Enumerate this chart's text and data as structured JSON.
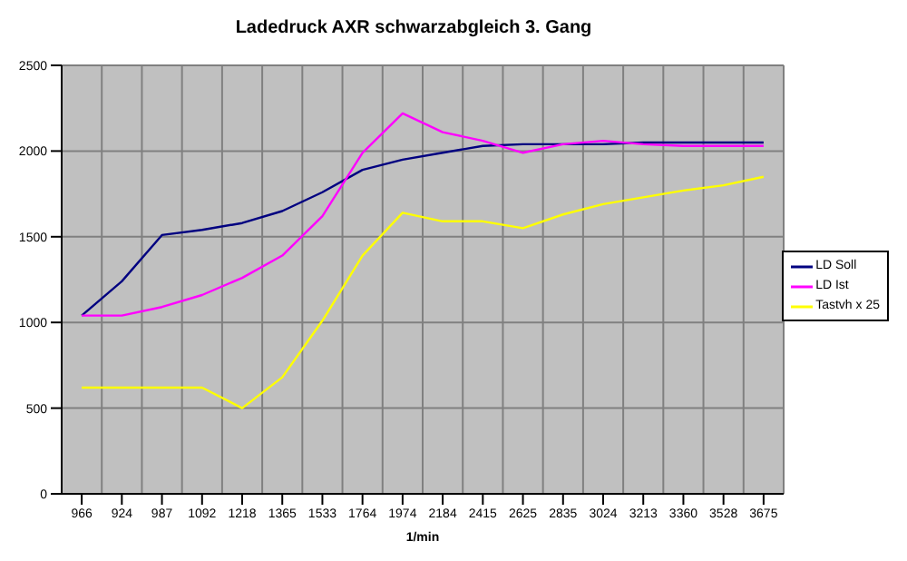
{
  "chart_data": {
    "type": "line",
    "title": "Ladedruck AXR schwarzabgleich 3. Gang",
    "xlabel": "1/min",
    "categories": [
      "966",
      "924",
      "987",
      "1092",
      "1218",
      "1365",
      "1533",
      "1764",
      "1974",
      "2184",
      "2415",
      "2625",
      "2835",
      "3024",
      "3213",
      "3360",
      "3528",
      "3675"
    ],
    "series": [
      {
        "name": "LD Soll",
        "color": "#000080",
        "values": [
          1040,
          1240,
          1510,
          1540,
          1580,
          1650,
          1760,
          1890,
          1950,
          1990,
          2030,
          2040,
          2040,
          2040,
          2050,
          2050,
          2050,
          2050
        ]
      },
      {
        "name": "LD Ist",
        "color": "#ff00ff",
        "values": [
          1040,
          1040,
          1090,
          1160,
          1260,
          1390,
          1620,
          1990,
          2220,
          2110,
          2060,
          1990,
          2040,
          2060,
          2040,
          2030,
          2030,
          2030
        ]
      },
      {
        "name": "Tastvh x 25",
        "color": "#ffff00",
        "values": [
          620,
          620,
          620,
          620,
          500,
          680,
          1010,
          1390,
          1640,
          1590,
          1590,
          1550,
          1630,
          1690,
          1730,
          1770,
          1800,
          1850
        ]
      }
    ],
    "ylim": [
      0,
      2500
    ],
    "yticks": [
      0,
      500,
      1000,
      1500,
      2000,
      2500
    ],
    "grid": true,
    "legend": "right",
    "marker": "none",
    "line_style": "solid"
  }
}
